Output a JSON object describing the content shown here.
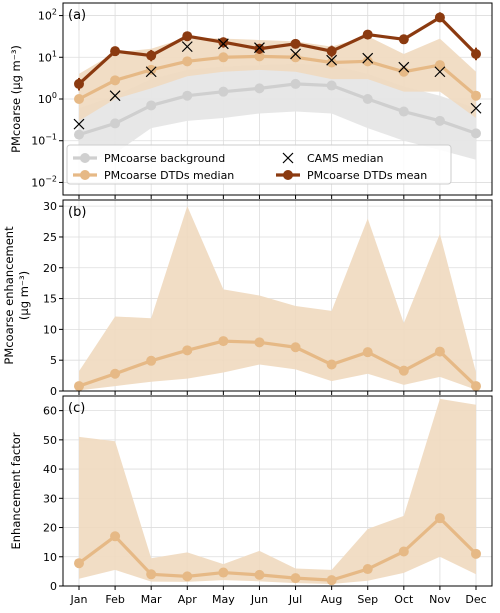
{
  "chart_data": {
    "type": "line",
    "categories": [
      "Jan",
      "Feb",
      "Mar",
      "Apr",
      "May",
      "Jun",
      "Jul",
      "Aug",
      "Sep",
      "Oct",
      "Nov",
      "Dec"
    ],
    "colors": {
      "background": "#cfcfcf",
      "background_band": "#e6e6e6",
      "median": "#e6b986",
      "median_band": "#f0d9bf",
      "mean": "#8b3a10",
      "cams": "#000000",
      "grid": "#dddddd"
    },
    "panels": [
      {
        "label": "(a)",
        "ylabel": "PMcoarse (μg m⁻³)",
        "yscale": "log",
        "ylim": [
          0.005,
          200
        ],
        "yticks": [
          0.01,
          0.1,
          1,
          10,
          100
        ],
        "ytick_labels": [
          {
            "base": "10",
            "exp": "−2"
          },
          {
            "base": "10",
            "exp": "−1"
          },
          {
            "base": "10",
            "exp": "0"
          },
          {
            "base": "10",
            "exp": "1"
          },
          {
            "base": "10",
            "exp": "2"
          }
        ],
        "series": [
          {
            "name": "PMcoarse background",
            "values": [
              0.14,
              0.26,
              0.7,
              1.2,
              1.5,
              1.8,
              2.3,
              2.1,
              1.0,
              0.5,
              0.3,
              0.15
            ],
            "band_low": [
              0.03,
              0.05,
              0.2,
              0.3,
              0.35,
              0.45,
              0.5,
              0.45,
              0.2,
              0.1,
              0.06,
              0.035
            ],
            "band_high": [
              0.6,
              1.2,
              3.0,
              5.0,
              6.0,
              6.5,
              7.0,
              6.5,
              4.0,
              2.0,
              1.2,
              0.6
            ]
          },
          {
            "name": "PMcoarse DTDs median",
            "values": [
              1.0,
              2.8,
              5.0,
              8.0,
              10.0,
              10.5,
              10.0,
              7.5,
              8.0,
              4.5,
              6.5,
              1.2
            ],
            "band_low": [
              0.3,
              1.0,
              1.8,
              3.5,
              4.5,
              5.0,
              4.5,
              3.0,
              3.0,
              1.5,
              1.5,
              0.35
            ],
            "band_high": [
              4.0,
              13.0,
              16.0,
              30.0,
              28.0,
              26.0,
              24.0,
              18.0,
              32.0,
              12.0,
              28.0,
              4.5
            ]
          },
          {
            "name": "PMcoarse DTDs mean",
            "values": [
              2.3,
              14.0,
              11.0,
              32.0,
              23.0,
              16.0,
              21.0,
              14.0,
              35.0,
              27.0,
              90.0,
              12.0
            ],
            "err_low": [
              1.6,
              11.0,
              8.0,
              25.0,
              17.0,
              12.0,
              17.0,
              10.0,
              28.0,
              21.0,
              70.0,
              8.5
            ],
            "err_high": [
              3.2,
              18.0,
              15.0,
              40.0,
              30.0,
              21.0,
              26.0,
              19.0,
              45.0,
              35.0,
              120.0,
              17.0
            ]
          },
          {
            "name": "CAMS median",
            "values": [
              0.25,
              1.2,
              4.5,
              18.0,
              21.0,
              17.0,
              12.0,
              8.5,
              9.5,
              5.8,
              4.5,
              0.6
            ]
          }
        ],
        "legend": [
          "PMcoarse background",
          "CAMS median",
          "PMcoarse DTDs median",
          "PMcoarse DTDs mean"
        ]
      },
      {
        "label": "(b)",
        "ylabel_line1": "PMcoarse enhancement",
        "ylabel_line2": "(μg m⁻³)",
        "yscale": "linear",
        "ylim": [
          0,
          31
        ],
        "yticks": [
          0,
          5,
          10,
          15,
          20,
          25,
          30
        ],
        "series": [
          {
            "name": "enhancement median",
            "values": [
              0.8,
              2.8,
              4.9,
              6.6,
              8.1,
              7.9,
              7.1,
              4.3,
              6.3,
              3.3,
              6.4,
              0.8
            ],
            "band_low": [
              0.1,
              0.8,
              1.5,
              2.0,
              3.0,
              4.3,
              3.5,
              1.6,
              2.8,
              1.0,
              2.3,
              0.2
            ],
            "band_high": [
              3.2,
              12.1,
              11.8,
              30.0,
              16.5,
              15.5,
              13.8,
              13.0,
              28.0,
              11.0,
              25.5,
              3.0
            ]
          }
        ]
      },
      {
        "label": "(c)",
        "ylabel": "Enhancement factor",
        "yscale": "linear",
        "ylim": [
          0,
          65
        ],
        "yticks": [
          0,
          10,
          20,
          30,
          40,
          50,
          60
        ],
        "series": [
          {
            "name": "enhancement factor median",
            "values": [
              7.8,
              17.0,
              4.0,
              3.3,
              4.6,
              3.8,
              2.7,
              2.0,
              5.8,
              11.8,
              23.2,
              11.0
            ],
            "band_low": [
              2.5,
              5.5,
              1.5,
              1.4,
              2.0,
              1.6,
              1.0,
              0.7,
              1.8,
              4.5,
              10.0,
              4.0
            ],
            "band_high": [
              51.0,
              49.5,
              9.5,
              11.5,
              7.5,
              12.0,
              6.0,
              5.5,
              19.5,
              24.0,
              64.0,
              62.0
            ]
          }
        ]
      }
    ]
  }
}
